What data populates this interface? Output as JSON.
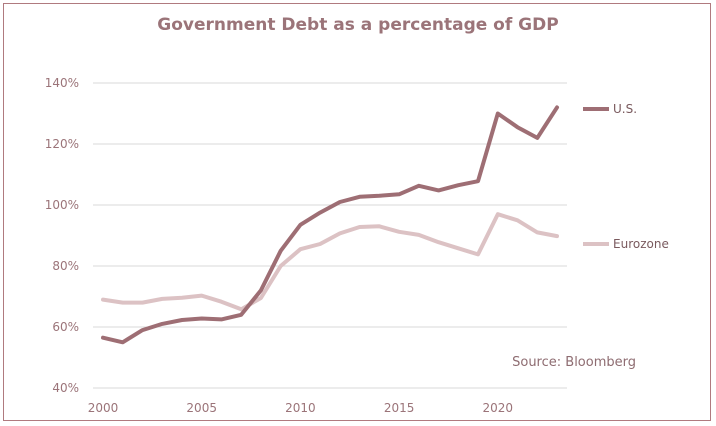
{
  "chart_data": {
    "type": "line",
    "title": "Government Debt as a percentage of GDP",
    "xlabel": "",
    "ylabel": "",
    "x": [
      2000,
      2001,
      2002,
      2003,
      2004,
      2005,
      2006,
      2007,
      2008,
      2009,
      2010,
      2011,
      2012,
      2013,
      2014,
      2015,
      2016,
      2017,
      2018,
      2019,
      2020,
      2021,
      2022,
      2023
    ],
    "xticks": [
      "2000",
      "2005",
      "2010",
      "2015",
      "2020"
    ],
    "xtick_values": [
      2000,
      2005,
      2010,
      2015,
      2020
    ],
    "yticks": [
      "40%",
      "60%",
      "80%",
      "100%",
      "120%",
      "140%"
    ],
    "ytick_values": [
      40,
      60,
      80,
      100,
      120,
      140
    ],
    "xlim": [
      2000,
      2023
    ],
    "ylim": [
      40,
      140
    ],
    "grid": true,
    "series": [
      {
        "name": "U.S.",
        "color": "#9e6e74",
        "values": [
          56.5,
          55,
          59,
          61,
          62.3,
          62.8,
          62.5,
          64,
          72,
          85,
          93.5,
          97.5,
          101,
          102.7,
          103,
          103.5,
          106.3,
          104.8,
          106.5,
          107.8,
          130,
          125.5,
          122,
          132
        ]
      },
      {
        "name": "Eurozone",
        "color": "#dcc2c4",
        "values": [
          69,
          68,
          68,
          69.2,
          69.6,
          70.3,
          68.3,
          65.8,
          69.5,
          80,
          85.5,
          87.2,
          90.7,
          92.8,
          93,
          91.2,
          90.2,
          87.8,
          85.8,
          83.8,
          97,
          95,
          91,
          89.8
        ]
      }
    ],
    "annotations": [
      "Source: Bloomberg"
    ],
    "legend_placement": "right (inline at line ends)"
  }
}
